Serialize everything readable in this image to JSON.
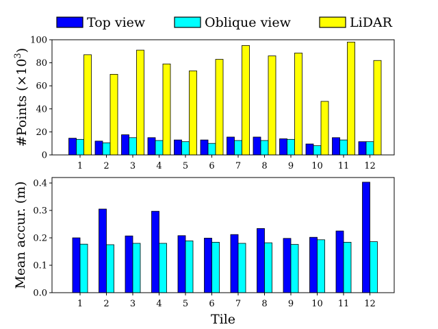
{
  "chart_data": [
    {
      "type": "bar",
      "title": "",
      "xlabel": "",
      "ylabel": "#Points (×10",
      "ylabel_superscript": "3",
      "ylabel_close": ")",
      "ylim": [
        0,
        100
      ],
      "yticks": [
        "0",
        "20",
        "40",
        "60",
        "80",
        "100"
      ],
      "categories": [
        "1",
        "2",
        "3",
        "4",
        "5",
        "6",
        "7",
        "8",
        "9",
        "10",
        "11",
        "12"
      ],
      "series": [
        {
          "name": "Top view",
          "color": "#0000ff",
          "values": [
            14.5,
            12,
            17.5,
            15,
            13,
            13,
            15.5,
            15.5,
            14,
            9.5,
            15,
            11.5
          ]
        },
        {
          "name": "Oblique view",
          "color": "#00ffff",
          "values": [
            13.5,
            10.5,
            15,
            12.5,
            11.5,
            10,
            12.5,
            12.5,
            13.5,
            8,
            13,
            11.5
          ]
        },
        {
          "name": "LiDAR",
          "color": "#ffff00",
          "values": [
            87,
            70,
            91,
            79,
            73,
            83,
            95,
            86,
            88.5,
            46.5,
            98,
            82
          ]
        }
      ]
    },
    {
      "type": "bar",
      "title": "",
      "xlabel": "Tile",
      "ylabel": "Mean accur. (m)",
      "ylim": [
        0,
        0.42
      ],
      "yticks": [
        "0.0",
        "0.1",
        "0.2",
        "0.3",
        "0.4"
      ],
      "categories": [
        "1",
        "2",
        "3",
        "4",
        "5",
        "6",
        "7",
        "8",
        "9",
        "10",
        "11",
        "12"
      ],
      "series": [
        {
          "name": "Top view",
          "color": "#0000ff",
          "values": [
            0.2,
            0.305,
            0.207,
            0.297,
            0.208,
            0.199,
            0.212,
            0.234,
            0.198,
            0.202,
            0.225,
            0.403
          ]
        },
        {
          "name": "Oblique view",
          "color": "#00ffff",
          "values": [
            0.177,
            0.175,
            0.18,
            0.18,
            0.189,
            0.184,
            0.18,
            0.182,
            0.176,
            0.193,
            0.184,
            0.186
          ]
        }
      ]
    }
  ],
  "legend": {
    "placement": "top",
    "items": [
      {
        "label": "Top view",
        "color": "#0000ff"
      },
      {
        "label": "Oblique view",
        "color": "#00ffff"
      },
      {
        "label": "LiDAR",
        "color": "#ffff00"
      }
    ]
  }
}
